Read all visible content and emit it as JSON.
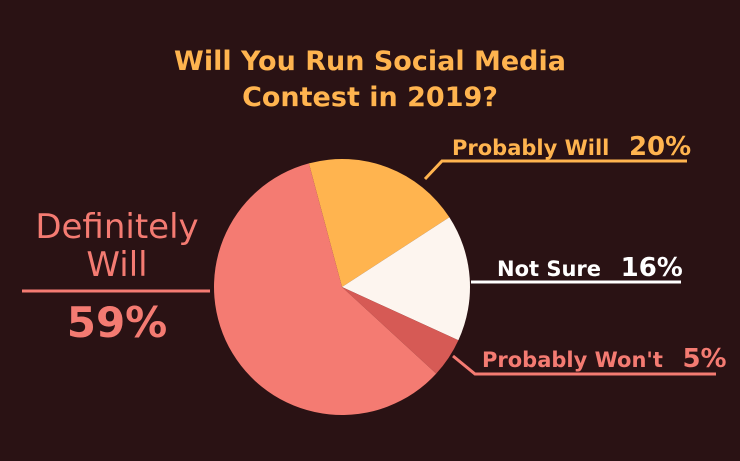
{
  "chart_data": {
    "type": "pie",
    "title_lines": [
      "Will You Run Social Media",
      "Contest in 2019?"
    ],
    "slices": [
      {
        "label": "Probably Will",
        "value": 20,
        "value_text": "20%",
        "color": "#ffb44f"
      },
      {
        "label": "Not Sure",
        "value": 16,
        "value_text": "16%",
        "color": "#fdf5ef"
      },
      {
        "label": "Probably Won't",
        "value": 5,
        "value_text": "5%",
        "color": "#d65a55"
      },
      {
        "label": "Definitely Will",
        "value": 59,
        "value_text": "59%",
        "color": "#f47b72"
      }
    ],
    "definitely_label_lines": [
      "Definitely",
      "Will"
    ]
  },
  "colors": {
    "background": "#2a1214",
    "title": "#ffb44f",
    "probably_will": "#ffb44f",
    "not_sure": "#ffffff",
    "probably_wont": "#f47b72",
    "definitely_will": "#f47b72"
  }
}
